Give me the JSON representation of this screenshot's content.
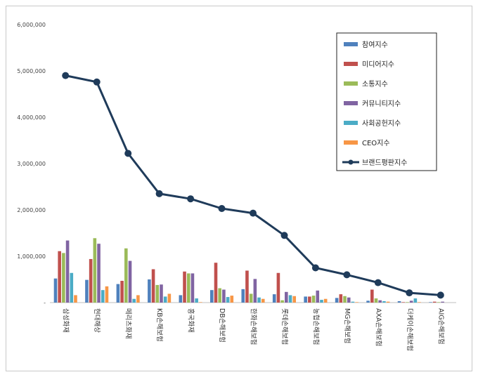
{
  "chart_data": {
    "type": "bar",
    "title": "",
    "xlabel": "",
    "ylabel": "",
    "ylim": [
      0,
      6000000
    ],
    "yticks": [
      "-",
      "1,000,000",
      "2,000,000",
      "3,000,000",
      "4,000,000",
      "5,000,000",
      "6,000,000"
    ],
    "categories": [
      "삼성화재",
      "현대해상",
      "메리츠화재",
      "KB손해보험",
      "흥국화재",
      "DB손해보험",
      "한화손해보험",
      "롯데손해보험",
      "농협손해보험",
      "MG손해보험",
      "AXA손해보험",
      "더케이손해보험",
      "AIG손해보험"
    ],
    "legend_position": "top-right",
    "grid": false,
    "series": [
      {
        "name": "참여지수",
        "type": "bar",
        "color": "#4F81BD",
        "values": [
          520000,
          490000,
          400000,
          500000,
          160000,
          270000,
          290000,
          180000,
          130000,
          100000,
          40000,
          30000,
          10000
        ]
      },
      {
        "name": "미디어지수",
        "type": "bar",
        "color": "#C0504D",
        "values": [
          1110000,
          940000,
          470000,
          720000,
          670000,
          860000,
          690000,
          640000,
          130000,
          180000,
          280000,
          10000,
          20000
        ]
      },
      {
        "name": "소통지수",
        "type": "bar",
        "color": "#9BBB59",
        "values": [
          1070000,
          1390000,
          1170000,
          380000,
          630000,
          310000,
          190000,
          50000,
          150000,
          140000,
          90000,
          10000,
          10000
        ]
      },
      {
        "name": "커뮤니티지수",
        "type": "bar",
        "color": "#8064A2",
        "values": [
          1340000,
          1270000,
          900000,
          390000,
          630000,
          280000,
          510000,
          230000,
          260000,
          110000,
          50000,
          40000,
          20000
        ]
      },
      {
        "name": "사회공헌지수",
        "type": "bar",
        "color": "#4BACC6",
        "values": [
          640000,
          270000,
          80000,
          130000,
          90000,
          120000,
          110000,
          160000,
          60000,
          20000,
          30000,
          90000,
          0
        ]
      },
      {
        "name": "CEO지수",
        "type": "bar",
        "color": "#F79646",
        "values": [
          160000,
          350000,
          160000,
          190000,
          10000,
          150000,
          80000,
          140000,
          80000,
          10000,
          20000,
          10000,
          0
        ]
      },
      {
        "name": "브랜드평판지수",
        "type": "line",
        "color": "#1F3B5A",
        "values": [
          4900000,
          4760000,
          3220000,
          2350000,
          2240000,
          2030000,
          1930000,
          1450000,
          750000,
          600000,
          430000,
          210000,
          160000
        ]
      }
    ]
  }
}
